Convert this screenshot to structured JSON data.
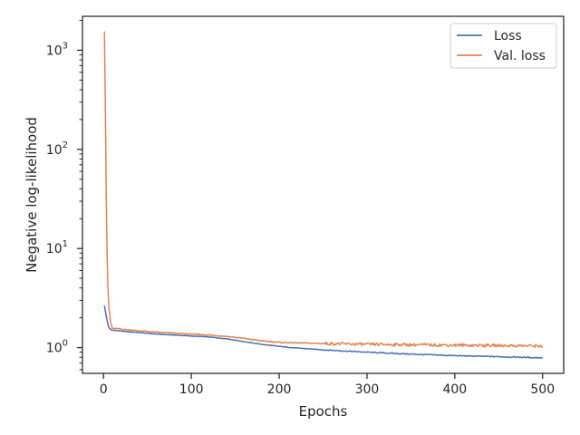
{
  "chart_data": {
    "type": "line",
    "xlabel": "Epochs",
    "ylabel": "Negative log-likelihood",
    "xlim": [
      -24,
      524
    ],
    "ylim": [
      0.55,
      2200
    ],
    "yscale": "log",
    "x_ticks": [
      0,
      100,
      200,
      300,
      400,
      500
    ],
    "x_tick_labels": [
      "0",
      "100",
      "200",
      "300",
      "400",
      "500"
    ],
    "y_ticks": [
      1,
      10,
      100,
      1000
    ],
    "y_tick_base": "10",
    "y_tick_exponents": [
      "0",
      "1",
      "2",
      "3"
    ],
    "legend_position": "top-right",
    "grid": false,
    "series": [
      {
        "name": "Loss",
        "color": "#4c72b0",
        "x": [
          1,
          3,
          5,
          7,
          10,
          20,
          40,
          60,
          80,
          100,
          120,
          140,
          160,
          180,
          200,
          220,
          250,
          280,
          300,
          350,
          400,
          450,
          500
        ],
        "y": [
          2.65,
          2.1,
          1.7,
          1.55,
          1.5,
          1.47,
          1.42,
          1.37,
          1.34,
          1.31,
          1.28,
          1.23,
          1.15,
          1.08,
          1.03,
          0.99,
          0.95,
          0.92,
          0.9,
          0.86,
          0.83,
          0.81,
          0.79
        ]
      },
      {
        "name": "Val. loss",
        "color": "#dd8452",
        "x": [
          1,
          2,
          3,
          4,
          5,
          6,
          8,
          10,
          20,
          40,
          60,
          80,
          100,
          120,
          140,
          160,
          180,
          200,
          250,
          300,
          350,
          400,
          450,
          500
        ],
        "y": [
          1550,
          300,
          40,
          9,
          4,
          2.6,
          1.8,
          1.57,
          1.54,
          1.48,
          1.43,
          1.4,
          1.37,
          1.34,
          1.3,
          1.24,
          1.17,
          1.13,
          1.1,
          1.08,
          1.07,
          1.06,
          1.05,
          1.04
        ]
      }
    ]
  }
}
